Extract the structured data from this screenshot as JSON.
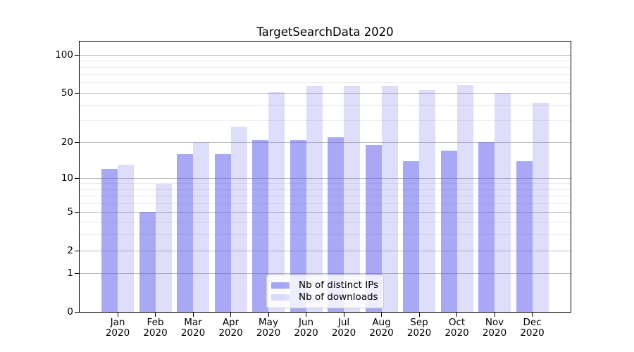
{
  "chart_data": {
    "type": "bar",
    "title": "TargetSearchData 2020",
    "categories": [
      "Jan",
      "Feb",
      "Mar",
      "Apr",
      "May",
      "Jun",
      "Jul",
      "Aug",
      "Sep",
      "Oct",
      "Nov",
      "Dec"
    ],
    "category_year": "2020",
    "series": [
      {
        "name": "Nb of distinct IPs",
        "color": "rgba(88,88,235,0.52)",
        "values": [
          12,
          5,
          16,
          16,
          21,
          21,
          22,
          19,
          14,
          17,
          20,
          14
        ]
      },
      {
        "name": "Nb of downloads",
        "color": "rgba(88,88,235,0.20)",
        "values": [
          13,
          9,
          20,
          27,
          51,
          57,
          57,
          57,
          53,
          58,
          50,
          42
        ]
      }
    ],
    "y_axis": {
      "scale": "symlog",
      "ticks": [
        0,
        1,
        2,
        5,
        10,
        20,
        50,
        100
      ],
      "minor_ticks": [
        3,
        4,
        6,
        7,
        8,
        9,
        30,
        40,
        60,
        70,
        80,
        90
      ],
      "lim": [
        0,
        127
      ]
    },
    "xlabel": "",
    "ylabel": "",
    "grid": true,
    "legend_position": "lower center",
    "colors": {
      "grid_major": "#bdbdbd",
      "grid_minor": "#e9e9e9",
      "spine": "#000000",
      "background": "#ffffff",
      "text": "#000000"
    }
  }
}
